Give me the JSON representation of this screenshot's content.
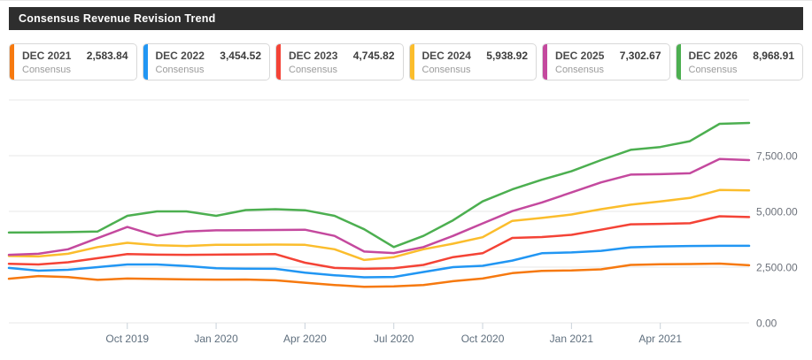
{
  "header": {
    "title": "Consensus Revenue Revision Trend"
  },
  "legend": {
    "items": [
      {
        "period": "DEC 2021",
        "value": "2,583.84",
        "sublabel": "Consensus",
        "color": "#f6790f"
      },
      {
        "period": "DEC 2022",
        "value": "3,454.52",
        "sublabel": "Consensus",
        "color": "#2196f3"
      },
      {
        "period": "DEC 2023",
        "value": "4,745.82",
        "sublabel": "Consensus",
        "color": "#f44336"
      },
      {
        "period": "DEC 2024",
        "value": "5,938.92",
        "sublabel": "Consensus",
        "color": "#fbbd2c"
      },
      {
        "period": "DEC 2025",
        "value": "7,302.67",
        "sublabel": "Consensus",
        "color": "#c4499e"
      },
      {
        "period": "DEC 2026",
        "value": "8,968.91",
        "sublabel": "Consensus",
        "color": "#4caf50"
      }
    ]
  },
  "chart_data": {
    "type": "line",
    "title": "Consensus Revenue Revision Trend",
    "grid": true,
    "legend_position": "top",
    "ylim": [
      0,
      10000
    ],
    "x": [
      "Jun 2019",
      "Jul 2019",
      "Aug 2019",
      "Sep 2019",
      "Oct 2019",
      "Nov 2019",
      "Dec 2019",
      "Jan 2020",
      "Feb 2020",
      "Mar 2020",
      "Apr 2020",
      "May 2020",
      "Jun 2020",
      "Jul 2020",
      "Aug 2020",
      "Sep 2020",
      "Oct 2020",
      "Nov 2020",
      "Dec 2020",
      "Jan 2021",
      "Feb 2021",
      "Mar 2021",
      "Apr 2021",
      "May 2021",
      "Jun 2021",
      "Jul 2021"
    ],
    "x_ticks": [
      {
        "index": 4,
        "label": "Oct 2019"
      },
      {
        "index": 7,
        "label": "Jan 2020"
      },
      {
        "index": 10,
        "label": "Apr 2020"
      },
      {
        "index": 13,
        "label": "Jul 2020"
      },
      {
        "index": 16,
        "label": "Oct 2020"
      },
      {
        "index": 19,
        "label": "Jan 2021"
      },
      {
        "index": 22,
        "label": "Apr 2021"
      }
    ],
    "y_ticks": [
      {
        "value": 0,
        "label": "0.00"
      },
      {
        "value": 2500,
        "label": "2,500.00"
      },
      {
        "value": 5000,
        "label": "5,000.00"
      },
      {
        "value": 7500,
        "label": "7,500.00"
      },
      {
        "value": 10000,
        "label": ""
      }
    ],
    "series": [
      {
        "name": "DEC 2021 Consensus",
        "color": "#f6790f",
        "values": [
          1980,
          2100,
          2050,
          1930,
          1990,
          1970,
          1950,
          1940,
          1945,
          1910,
          1800,
          1700,
          1620,
          1635,
          1700,
          1870,
          1990,
          2230,
          2335,
          2350,
          2400,
          2600,
          2625,
          2640,
          2660,
          2583.84
        ]
      },
      {
        "name": "DEC 2022 Consensus",
        "color": "#2196f3",
        "values": [
          2465,
          2340,
          2380,
          2500,
          2620,
          2620,
          2550,
          2450,
          2430,
          2425,
          2250,
          2135,
          2045,
          2060,
          2280,
          2500,
          2560,
          2795,
          3125,
          3160,
          3230,
          3390,
          3430,
          3450,
          3455,
          3454.52
        ]
      },
      {
        "name": "DEC 2023 Consensus",
        "color": "#f44336",
        "values": [
          2650,
          2620,
          2720,
          2900,
          3085,
          3060,
          3050,
          3060,
          3070,
          3085,
          2700,
          2465,
          2425,
          2450,
          2600,
          2950,
          3125,
          3810,
          3850,
          3950,
          4180,
          4420,
          4440,
          4470,
          4780,
          4745.82
        ]
      },
      {
        "name": "DEC 2024 Consensus",
        "color": "#fbbd2c",
        "values": [
          3000,
          2980,
          3100,
          3400,
          3590,
          3480,
          3450,
          3500,
          3500,
          3510,
          3500,
          3300,
          2820,
          2950,
          3300,
          3550,
          3840,
          4575,
          4705,
          4860,
          5100,
          5300,
          5450,
          5605,
          5960,
          5938.92
        ]
      },
      {
        "name": "DEC 2025 Consensus",
        "color": "#c4499e",
        "values": [
          3050,
          3100,
          3300,
          3800,
          4300,
          3900,
          4100,
          4150,
          4160,
          4165,
          4180,
          3900,
          3200,
          3130,
          3400,
          3900,
          4460,
          5010,
          5400,
          5850,
          6300,
          6650,
          6670,
          6710,
          7350,
          7302.67
        ]
      },
      {
        "name": "DEC 2026 Consensus",
        "color": "#4caf50",
        "values": [
          4050,
          4060,
          4070,
          4100,
          4800,
          5000,
          5000,
          4800,
          5060,
          5100,
          5050,
          4800,
          4200,
          3400,
          3900,
          4600,
          5450,
          5990,
          6420,
          6800,
          7300,
          7760,
          7890,
          8150,
          8930,
          8968.91
        ]
      }
    ]
  }
}
